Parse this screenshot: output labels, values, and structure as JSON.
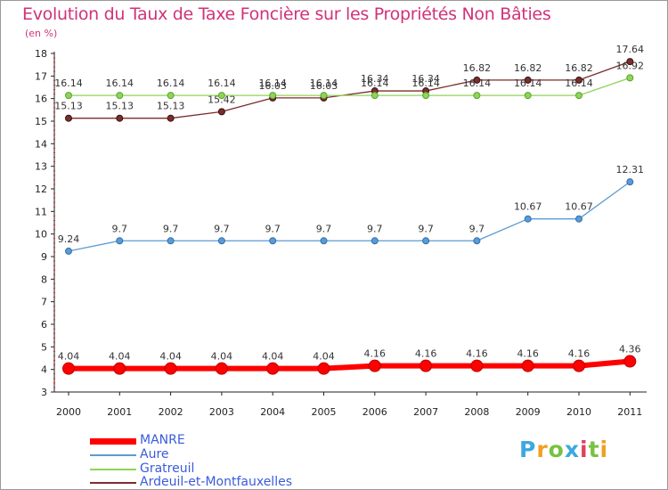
{
  "chart_data": {
    "type": "line",
    "title": "Evolution du Taux de Taxe Foncière sur les Propriétés Non Bâties",
    "subtitle": "(en %)",
    "xlabel": "",
    "ylabel": "",
    "categories": [
      "2000",
      "2001",
      "2002",
      "2003",
      "2004",
      "2005",
      "2006",
      "2007",
      "2008",
      "2009",
      "2010",
      "2011"
    ],
    "ylim": [
      3,
      18
    ],
    "yticks": [
      "3",
      "4",
      "5",
      "6",
      "7",
      "8",
      "9",
      "10",
      "11",
      "12",
      "13",
      "14",
      "15",
      "16",
      "17",
      "18"
    ],
    "grid": false,
    "legend_position": "bottom-left",
    "series": [
      {
        "name": "MANRE",
        "color": "#ff0000",
        "values": [
          4.04,
          4.04,
          4.04,
          4.04,
          4.04,
          4.04,
          4.16,
          4.16,
          4.16,
          4.16,
          4.16,
          4.36
        ],
        "labels": [
          "4.04",
          "4.04",
          "4.04",
          "4.04",
          "4.04",
          "4.04",
          "4.16",
          "4.16",
          "4.16",
          "4.16",
          "4.16",
          "4.36"
        ]
      },
      {
        "name": "Aure",
        "color": "#5b9bd5",
        "values": [
          9.24,
          9.7,
          9.7,
          9.7,
          9.7,
          9.7,
          9.7,
          9.7,
          9.7,
          10.67,
          10.67,
          12.31
        ],
        "labels": [
          "9.24",
          "9.7",
          "9.7",
          "9.7",
          "9.7",
          "9.7",
          "9.7",
          "9.7",
          "9.7",
          "10.67",
          "10.67",
          "12.31"
        ]
      },
      {
        "name": "Gratreuil",
        "color": "#8fd35a",
        "values": [
          16.14,
          16.14,
          16.14,
          16.14,
          16.14,
          16.14,
          16.14,
          16.14,
          16.14,
          16.14,
          16.14,
          16.92
        ],
        "labels": [
          "16.14",
          "16.14",
          "16.14",
          "16.14",
          "16.14",
          "16.14",
          "16.14",
          "16.14",
          "16.14",
          "16.14",
          "16.14",
          "16.92"
        ]
      },
      {
        "name": "Ardeuil-et-Montfauxelles",
        "color": "#7b2d2d",
        "values": [
          15.13,
          15.13,
          15.13,
          15.42,
          16.03,
          16.03,
          16.34,
          16.34,
          16.82,
          16.82,
          16.82,
          17.64
        ],
        "labels": [
          "15.13",
          "15.13",
          "15.13",
          "15.42",
          "16.03",
          "16.03",
          "16.34",
          "16.34",
          "16.82",
          "16.82",
          "16.82",
          "17.64"
        ]
      }
    ]
  },
  "logo": {
    "letters": [
      "P",
      "r",
      "o",
      "x",
      "i",
      "t",
      "i"
    ],
    "colors": [
      "#3da8e0",
      "#f0a020",
      "#7ac143",
      "#3da8e0",
      "#e04060",
      "#7ac143",
      "#f0a020"
    ]
  }
}
